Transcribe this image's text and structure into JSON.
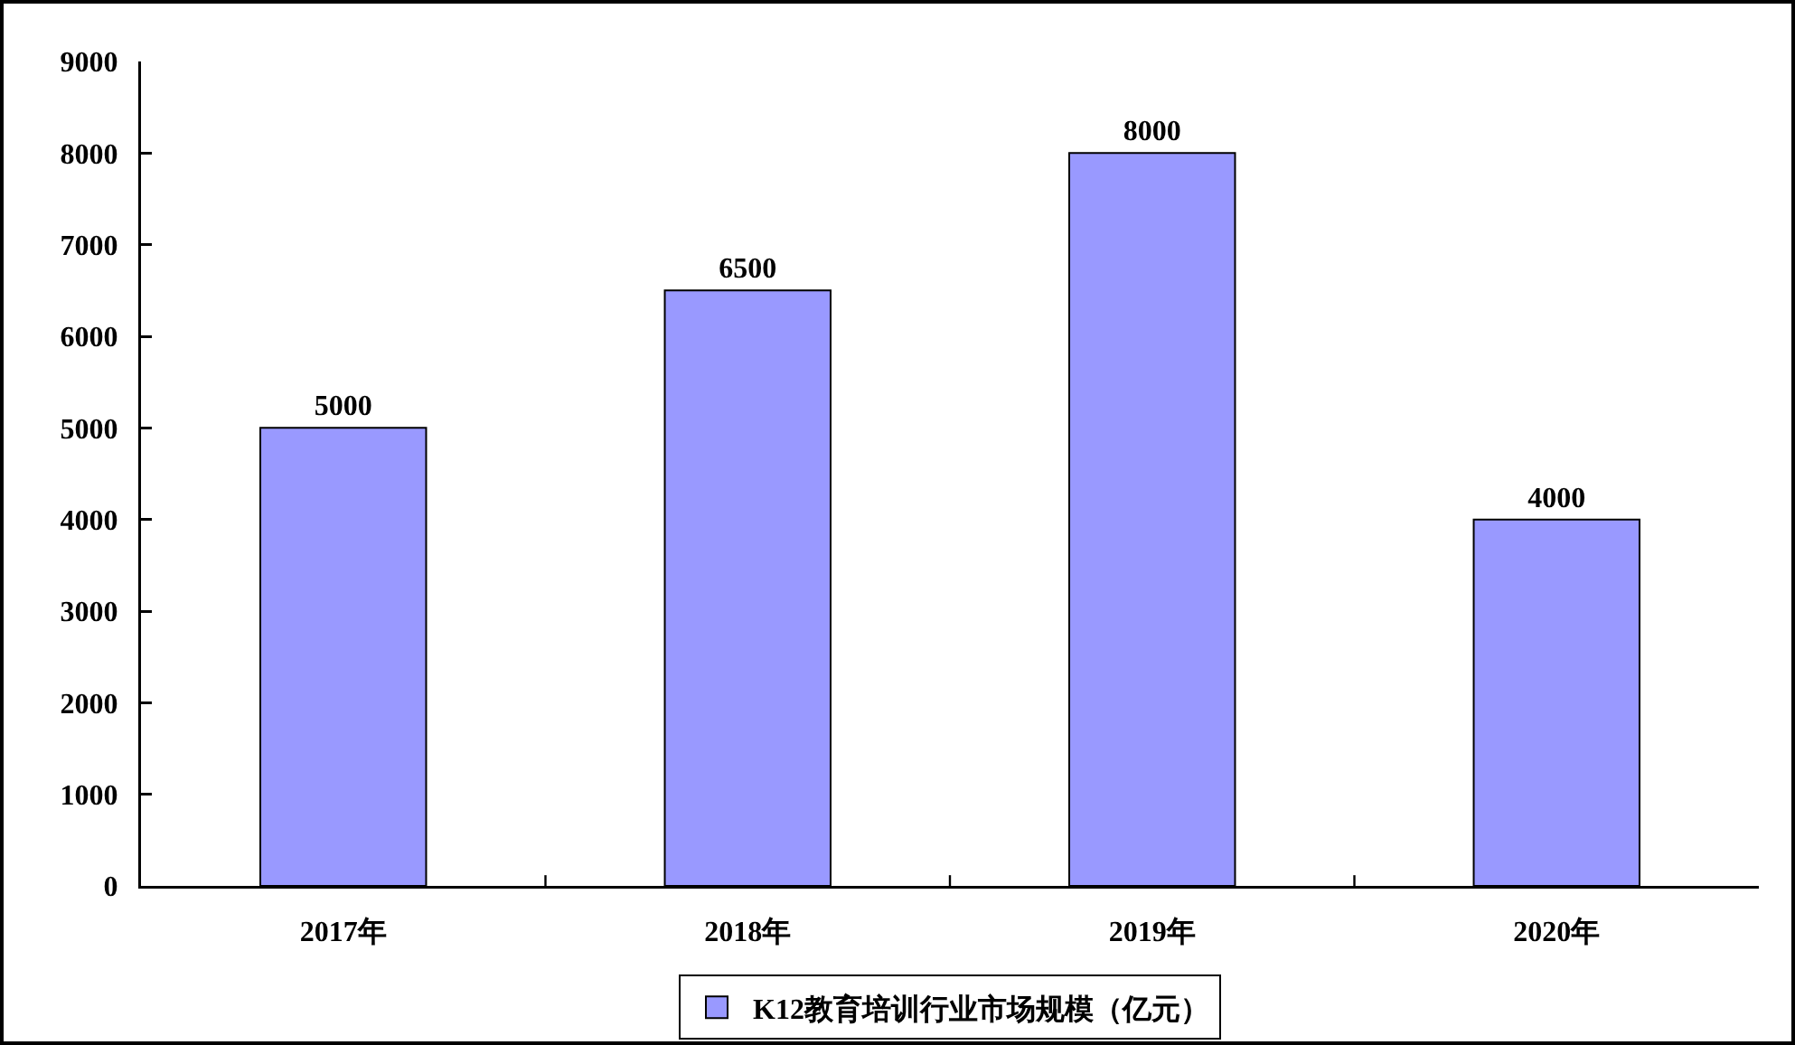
{
  "chart_data": {
    "type": "bar",
    "categories": [
      "2017年",
      "2018年",
      "2019年",
      "2020年"
    ],
    "series": [
      {
        "name": "K12教育培训行业市场规模（亿元）",
        "color": "#9999ff",
        "values": [
          5000,
          6500,
          8000,
          4000
        ]
      }
    ],
    "ylim": [
      0,
      9000
    ],
    "yticks": [
      0,
      1000,
      2000,
      3000,
      4000,
      5000,
      6000,
      7000,
      8000,
      9000
    ],
    "legend": "bottom",
    "data_labels": true
  }
}
